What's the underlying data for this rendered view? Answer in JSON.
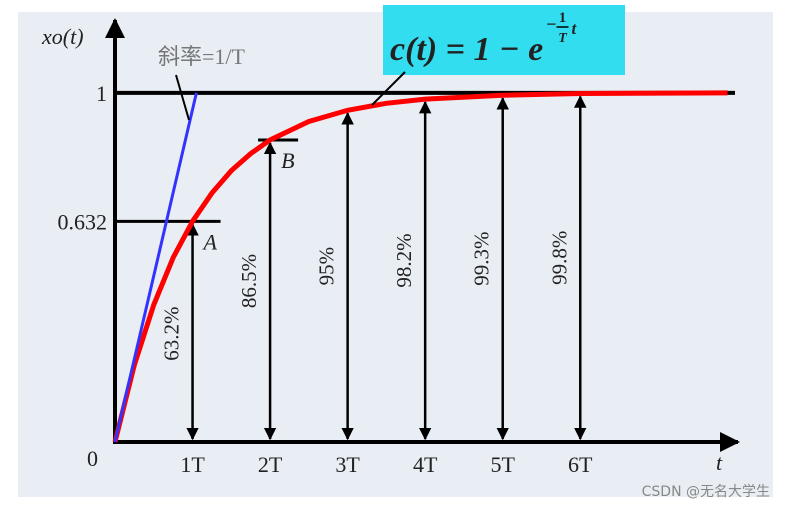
{
  "chart_data": {
    "type": "line",
    "x_label": "t",
    "y_label": "xo(t)",
    "xlim": [
      0,
      8.06
    ],
    "ylim": [
      0,
      1.22
    ],
    "xticks": [
      {
        "value": 1,
        "label": "1T"
      },
      {
        "value": 2,
        "label": "2T"
      },
      {
        "value": 3,
        "label": "3T"
      },
      {
        "value": 4,
        "label": "4T"
      },
      {
        "value": 5,
        "label": "5T"
      },
      {
        "value": 6,
        "label": "6T"
      }
    ],
    "yticks": [
      0,
      0.632,
      1
    ],
    "grid": false,
    "reference_line": 1,
    "series": [
      {
        "color": "#ff0000",
        "x": [
          0,
          0.25,
          0.5,
          0.75,
          1,
          1.25,
          1.5,
          1.75,
          2,
          2.5,
          3,
          3.5,
          4,
          5,
          6,
          7.9
        ],
        "values": [
          0,
          0.221,
          0.393,
          0.528,
          0.632,
          0.713,
          0.777,
          0.826,
          0.865,
          0.918,
          0.95,
          0.97,
          0.982,
          0.993,
          0.998,
          1
        ]
      },
      {
        "name": "斜率=1/T",
        "color": "#3333ff",
        "x": [
          0,
          1.05
        ],
        "values": [
          0,
          1
        ]
      }
    ],
    "points": [
      {
        "label": "A",
        "x": 1,
        "value": 0.632
      },
      {
        "label": "B",
        "x": 2,
        "value": 0.865
      }
    ],
    "markers": [
      {
        "x": 1,
        "value": 0.632,
        "label": "63.2%"
      },
      {
        "x": 2,
        "value": 0.865,
        "label": "86.5%"
      },
      {
        "x": 3,
        "value": 0.95,
        "label": "95%"
      },
      {
        "x": 4,
        "value": 0.982,
        "label": "98.2%"
      },
      {
        "x": 5,
        "value": 0.993,
        "label": "99.3%"
      },
      {
        "x": 6,
        "value": 0.998,
        "label": "99.8%"
      }
    ],
    "formula": {
      "base": "c(t) = 1 − e",
      "exp_sign": "−",
      "exp_num": "1",
      "exp_den": "T",
      "exp_var": "t"
    },
    "watermark": "CSDN @无名大学生"
  }
}
